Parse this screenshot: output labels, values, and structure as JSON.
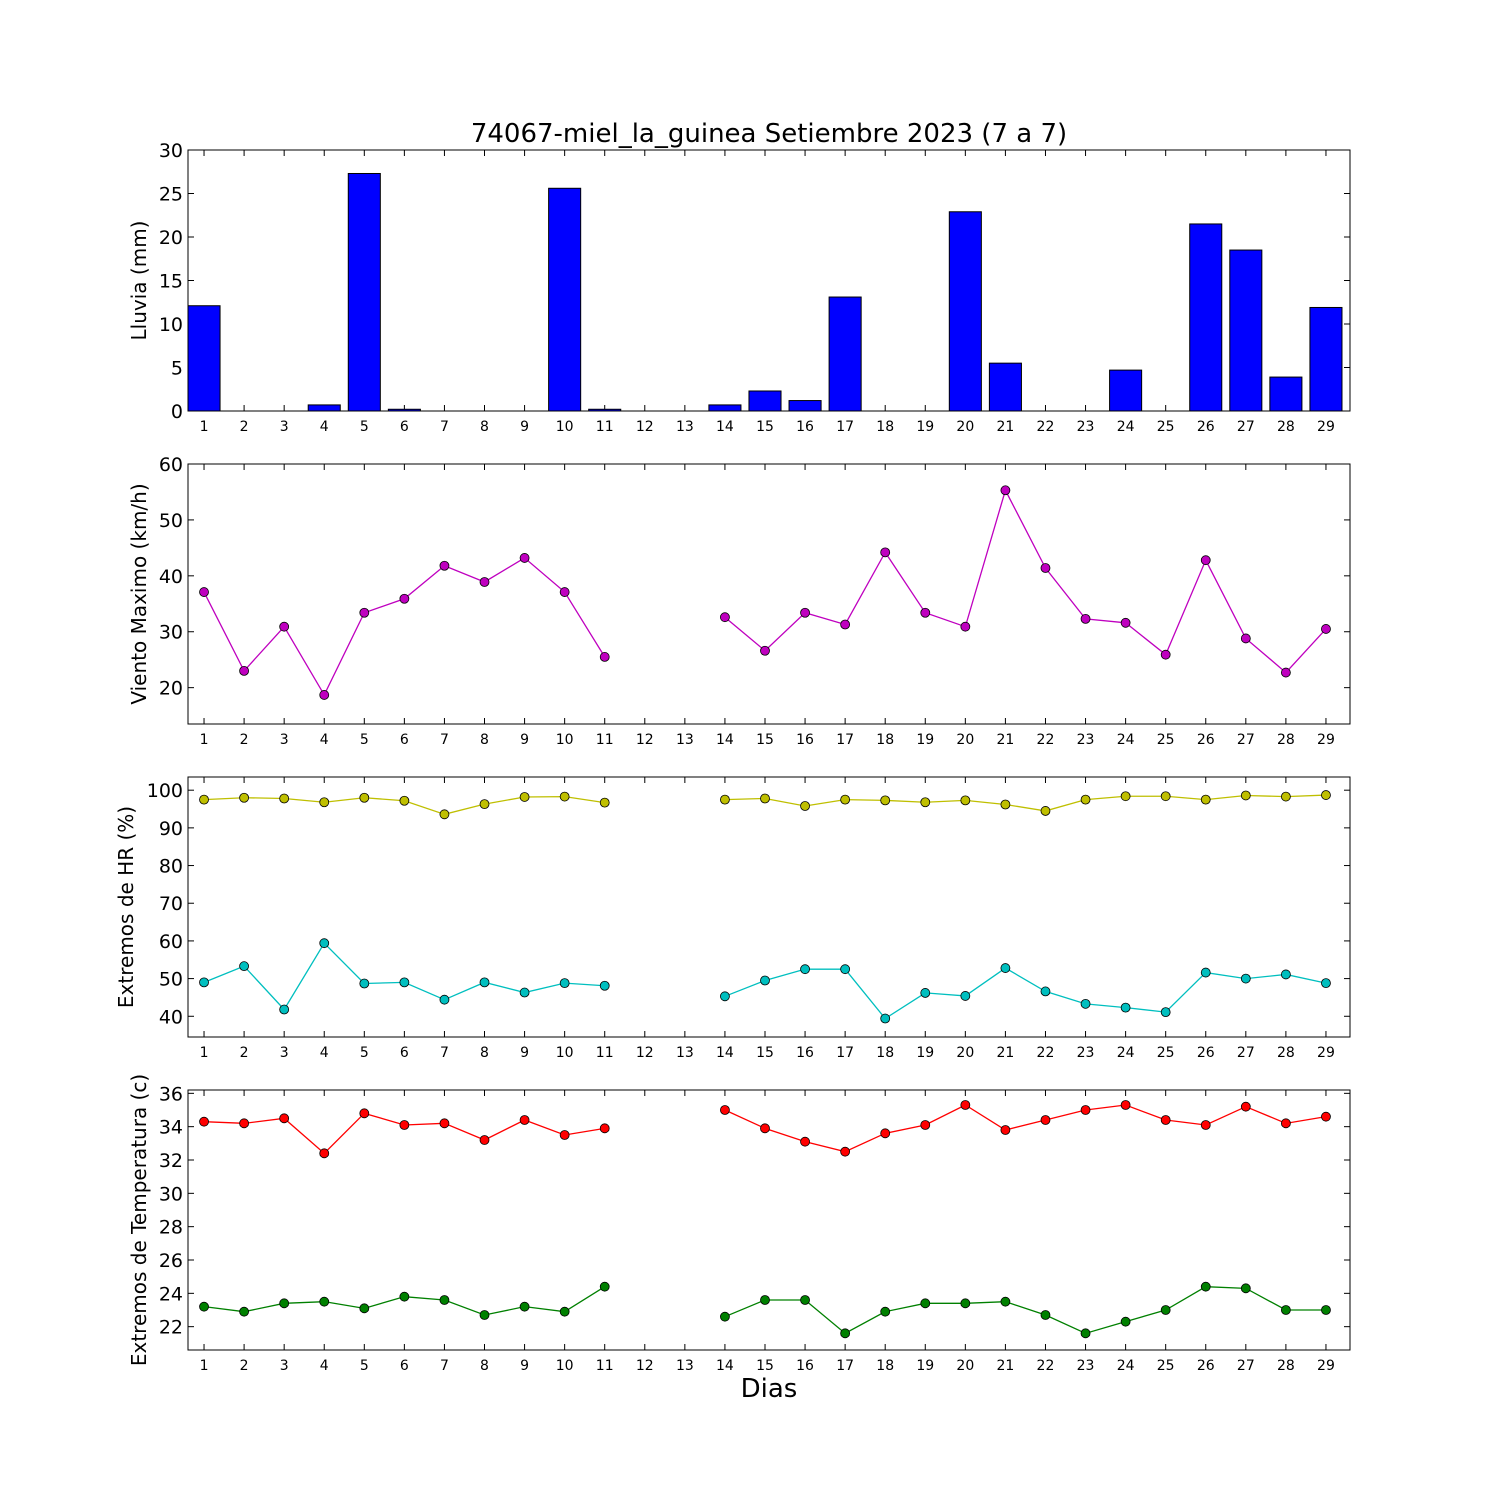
{
  "chart_data": {
    "title": "74067-miel_la_guinea Setiembre 2023  (7 a 7)",
    "xlabel": "Dias",
    "days": [
      1,
      2,
      3,
      4,
      5,
      6,
      7,
      8,
      9,
      10,
      11,
      12,
      13,
      14,
      15,
      16,
      17,
      18,
      19,
      20,
      21,
      22,
      23,
      24,
      25,
      26,
      27,
      28,
      29
    ],
    "day_labels": [
      "1",
      "2",
      "3",
      "4",
      "5",
      "6",
      "7",
      "8",
      "9",
      "10",
      "11",
      "12",
      "13",
      "14",
      "15",
      "16",
      "17",
      "18",
      "19",
      "20",
      "21",
      "22",
      "23",
      "24",
      "25",
      "26",
      "27",
      "28",
      "29"
    ],
    "panels": [
      {
        "type": "bar",
        "ylabel": "Lluvia (mm)",
        "ylim": [
          0,
          30
        ],
        "yticks": [
          0,
          5,
          10,
          15,
          20,
          25,
          30
        ],
        "series": [
          {
            "color": "#0000ff",
            "values": [
              12.1,
              0,
              0,
              0.7,
              27.3,
              0.2,
              0,
              0,
              0,
              25.6,
              0.2,
              null,
              null,
              0.7,
              2.3,
              1.2,
              13.1,
              0,
              0,
              22.9,
              5.5,
              0,
              0,
              4.7,
              0,
              21.5,
              18.5,
              3.9,
              11.9
            ]
          }
        ]
      },
      {
        "type": "line",
        "ylabel": "Viento Maximo (km/h)",
        "ylim": [
          13.5,
          60
        ],
        "yticks": [
          20,
          30,
          40,
          50,
          60
        ],
        "series": [
          {
            "color": "#bf00bf",
            "values": [
              37.1,
              23.0,
              30.9,
              18.7,
              33.4,
              35.9,
              41.8,
              38.9,
              43.2,
              37.1,
              25.5,
              null,
              null,
              32.6,
              26.6,
              33.4,
              31.3,
              44.2,
              33.4,
              30.9,
              55.3,
              41.4,
              32.3,
              31.6,
              25.9,
              42.8,
              28.8,
              22.7,
              30.5
            ]
          }
        ]
      },
      {
        "type": "line",
        "ylabel": "Extremos de HR (%)",
        "ylim": [
          34.5,
          103.5
        ],
        "yticks": [
          40,
          50,
          60,
          70,
          80,
          90,
          100
        ],
        "series": [
          {
            "color": "#bfbf00",
            "values": [
              97.5,
              98.0,
              97.8,
              96.8,
              98.0,
              97.2,
              93.6,
              96.3,
              98.2,
              98.3,
              96.7,
              null,
              null,
              97.5,
              97.8,
              95.8,
              97.5,
              97.3,
              96.8,
              97.3,
              96.2,
              94.5,
              97.5,
              98.4,
              98.4,
              97.5,
              98.6,
              98.3,
              98.7
            ]
          },
          {
            "color": "#00bfbf",
            "values": [
              49.0,
              53.3,
              41.8,
              59.4,
              48.7,
              49.0,
              44.4,
              49.0,
              46.3,
              48.8,
              48.1,
              null,
              null,
              45.3,
              49.5,
              52.5,
              52.5,
              39.4,
              46.2,
              45.4,
              52.8,
              46.6,
              43.3,
              42.3,
              41.1,
              51.6,
              50.0,
              51.1,
              48.8
            ]
          }
        ]
      },
      {
        "type": "line",
        "ylabel": "Extremos de Temperatura (c)",
        "ylim": [
          20.6,
          36.2
        ],
        "yticks": [
          22,
          24,
          26,
          28,
          30,
          32,
          34,
          36
        ],
        "series": [
          {
            "color": "#ff0000",
            "values": [
              34.3,
              34.2,
              34.5,
              32.4,
              34.8,
              34.1,
              34.2,
              33.2,
              34.4,
              33.5,
              33.9,
              null,
              null,
              35.0,
              33.9,
              33.1,
              32.5,
              33.6,
              34.1,
              35.3,
              33.8,
              34.4,
              35.0,
              35.3,
              34.4,
              34.1,
              35.2,
              34.2,
              34.6
            ]
          },
          {
            "color": "#008000",
            "values": [
              23.2,
              22.9,
              23.4,
              23.5,
              23.1,
              23.8,
              23.6,
              22.7,
              23.2,
              22.9,
              24.4,
              null,
              null,
              22.6,
              23.6,
              23.6,
              21.6,
              22.9,
              23.4,
              23.4,
              23.5,
              22.7,
              21.6,
              22.3,
              23.0,
              24.4,
              24.3,
              23.0,
              23.0
            ]
          }
        ]
      }
    ]
  }
}
